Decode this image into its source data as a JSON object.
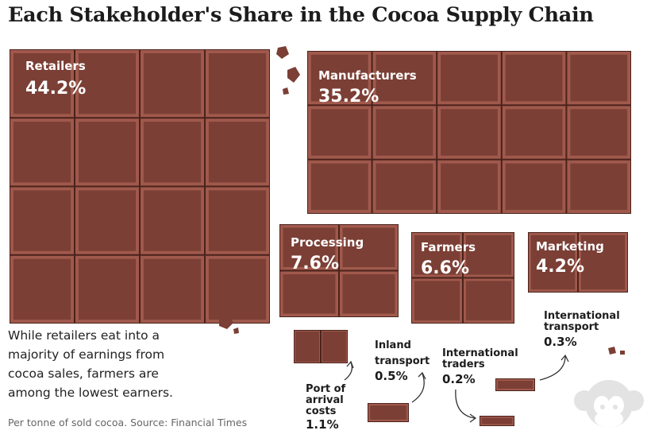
{
  "title": "Each Stakeholder's Share in the Cocoa Supply Chain",
  "description": "While retailers eat into a majority of earnings from cocoa sales, farmers are among the lowest earners.",
  "source": "Per tonne of sold cocoa. Source: Financial Times",
  "colors": {
    "chocolate": "#7b3f35",
    "chocolate_dark": "#4a221c",
    "chocolate_light": "#a0594c",
    "text": "#1c1c1c"
  },
  "chart_data": {
    "type": "treemap",
    "title": "Each Stakeholder's Share in the Cocoa Supply Chain",
    "unit": "%",
    "series": [
      {
        "name": "Retailers",
        "value": 44.2,
        "value_label": "44.2%"
      },
      {
        "name": "Manufacturers",
        "value": 35.2,
        "value_label": "35.2%"
      },
      {
        "name": "Processing",
        "value": 7.6,
        "value_label": "7.6%"
      },
      {
        "name": "Farmers",
        "value": 6.6,
        "value_label": "6.6%"
      },
      {
        "name": "Marketing",
        "value": 4.2,
        "value_label": "4.2%"
      },
      {
        "name": "Port of arrival costs",
        "value": 1.1,
        "value_label": "1.1%"
      },
      {
        "name": "Inland transport",
        "value": 0.5,
        "value_label": "0.5%"
      },
      {
        "name": "International traders",
        "value": 0.2,
        "value_label": "0.2%"
      },
      {
        "name": "International transport",
        "value": 0.3,
        "value_label": "0.3%"
      }
    ]
  }
}
